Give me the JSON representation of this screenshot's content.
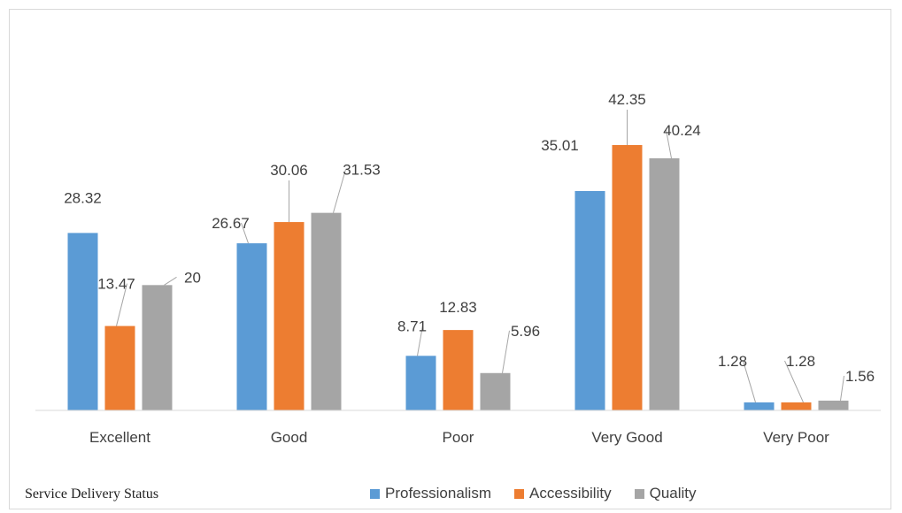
{
  "chart_data": {
    "type": "bar",
    "categories": [
      "Excellent",
      "Good",
      "Poor",
      "Very Good",
      "Very Poor"
    ],
    "series": [
      {
        "name": "Professionalism",
        "color": "#5b9bd5",
        "values": [
          28.32,
          26.67,
          8.71,
          35.01,
          1.28
        ]
      },
      {
        "name": "Accessibility",
        "color": "#ed7d31",
        "values": [
          13.47,
          30.06,
          12.83,
          42.35,
          1.28
        ]
      },
      {
        "name": "Quality",
        "color": "#a5a5a5",
        "values": [
          20,
          31.53,
          5.96,
          40.24,
          1.56
        ]
      }
    ],
    "ylim": [
      0,
      45
    ],
    "grid": false,
    "legend_position": "bottom",
    "data_label_color": "#404040",
    "leader_line_color": "#a6a6a6"
  },
  "footer": {
    "label": "Service Delivery Status"
  }
}
